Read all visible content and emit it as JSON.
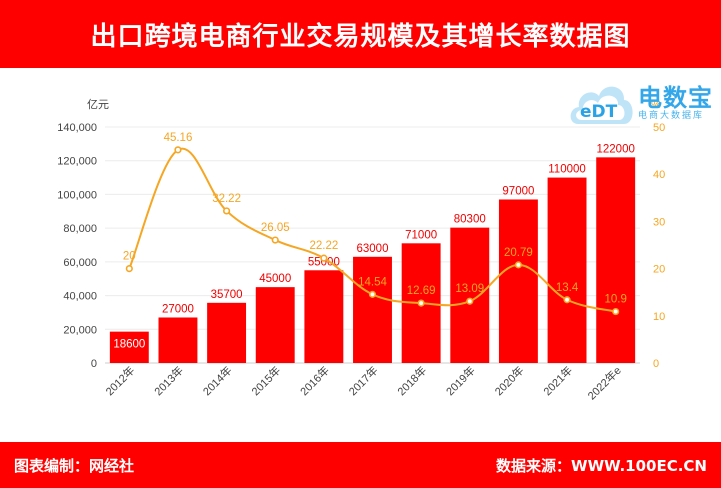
{
  "header": {
    "title": "出口跨境电商行业交易规模及其增长率数据图"
  },
  "footer": {
    "left": "图表编制：网经社",
    "right": "数据来源：WWW.100EC.CN"
  },
  "logo": {
    "brand": "电数宝",
    "sub": "电商大数据库",
    "mark_text": "eDT"
  },
  "colors": {
    "bar": "#fe0000",
    "line": "#f5a623",
    "header_bg": "#fe0000",
    "bar_label": "#f20000",
    "line_label": "#f5a623"
  },
  "chart_data": {
    "type": "bar",
    "categories": [
      "2012年",
      "2013年",
      "2014年",
      "2015年",
      "2016年",
      "2017年",
      "2018年",
      "2019年",
      "2020年",
      "2021年",
      "2022年e"
    ],
    "series": [
      {
        "type": "bar",
        "axis": "left",
        "values": [
          18600,
          27000,
          35700,
          45000,
          55000,
          63000,
          71000,
          80300,
          97000,
          110000,
          122000
        ]
      },
      {
        "type": "line",
        "axis": "right",
        "smooth": true,
        "values": [
          20,
          45.16,
          32.22,
          26.05,
          22.22,
          14.54,
          12.69,
          13.09,
          20.79,
          13.4,
          10.9
        ]
      }
    ],
    "ylabel": "亿元",
    "ylim": [
      0,
      140000
    ],
    "y_ticks": [
      "0",
      "20,000",
      "40,000",
      "60,000",
      "80,000",
      "100,000",
      "120,000",
      "140,000"
    ],
    "y_tick_values": [
      0,
      20000,
      40000,
      60000,
      80000,
      100000,
      120000,
      140000
    ],
    "y2label": "%",
    "y2lim": [
      0,
      50
    ],
    "y2_ticks": [
      "0",
      "10",
      "20",
      "30",
      "40",
      "50"
    ],
    "y2_tick_values": [
      0,
      10,
      20,
      30,
      40,
      50
    ],
    "bar_labels": [
      "18600",
      "27000",
      "35700",
      "45000",
      "55000",
      "63000",
      "71000",
      "80300",
      "97000",
      "110000",
      "122000"
    ],
    "line_labels": [
      "20",
      "45.16",
      "32.22",
      "26.05",
      "22.22",
      "14.54",
      "12.69",
      "13.09",
      "20.79",
      "13.4",
      "10.9"
    ],
    "grid": true
  }
}
